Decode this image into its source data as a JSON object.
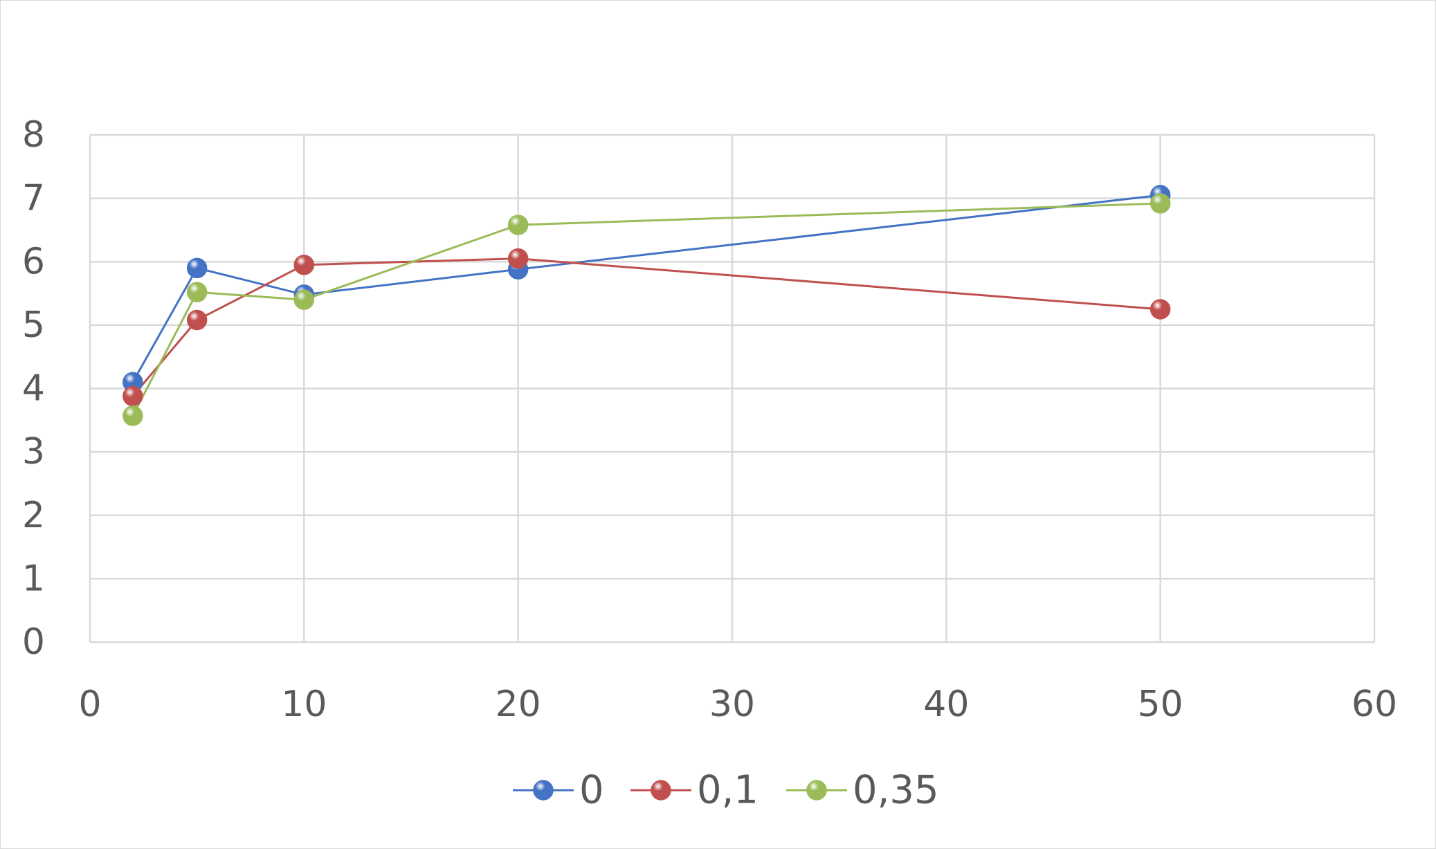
{
  "chart_data": {
    "type": "scatter",
    "title": "",
    "xlabel": "",
    "ylabel": "",
    "xlim": [
      0,
      60
    ],
    "ylim": [
      0,
      8
    ],
    "x_ticks": [
      "0",
      "10",
      "20",
      "30",
      "40",
      "50",
      "60"
    ],
    "y_ticks": [
      "0",
      "1",
      "2",
      "3",
      "4",
      "5",
      "6",
      "7",
      "8"
    ],
    "grid": true,
    "legend_position": "bottom",
    "series": [
      {
        "name": "0",
        "color": "#4472c4",
        "points": [
          [
            2,
            4.1
          ],
          [
            5,
            5.9
          ],
          [
            10,
            5.48
          ],
          [
            20,
            5.88
          ],
          [
            50,
            7.05
          ]
        ]
      },
      {
        "name": "0,1",
        "color": "#c0504d",
        "points": [
          [
            2,
            3.88
          ],
          [
            5,
            5.08
          ],
          [
            10,
            5.95
          ],
          [
            20,
            6.05
          ],
          [
            50,
            5.25
          ]
        ]
      },
      {
        "name": "0,35",
        "color": "#9bbb59",
        "points": [
          [
            2,
            3.57
          ],
          [
            5,
            5.52
          ],
          [
            10,
            5.4
          ],
          [
            20,
            6.58
          ],
          [
            50,
            6.92
          ]
        ]
      }
    ]
  }
}
